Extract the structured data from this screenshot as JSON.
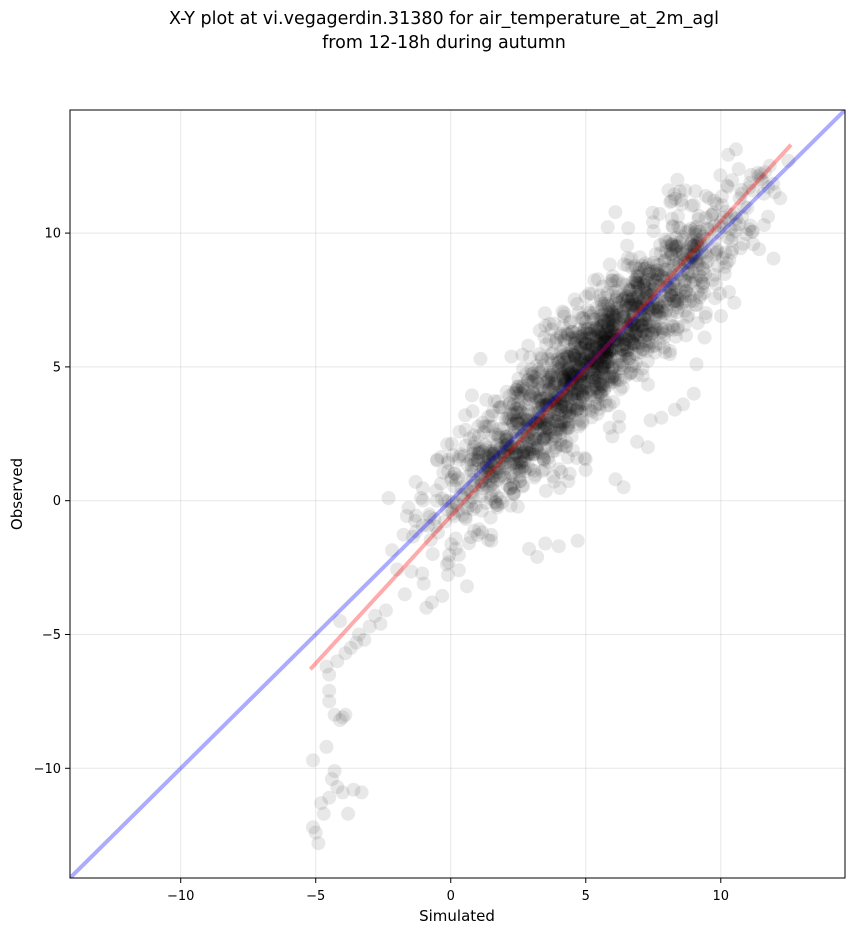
{
  "chart_data": {
    "type": "scatter",
    "title_line1": "X-Y plot at vi.vegagerdin.31380 for air_temperature_at_2m_agl",
    "title_line2": "from 12-18h during autumn",
    "xlabel": "Simulated",
    "ylabel": "Observed",
    "xlim": [
      -14.1,
      14.6
    ],
    "ylim": [
      -14.1,
      14.6
    ],
    "xticks": [
      -10,
      -5,
      0,
      5,
      10
    ],
    "yticks": [
      -10,
      -5,
      0,
      5,
      10
    ],
    "xtick_labels": [
      "−10",
      "−5",
      "0",
      "5",
      "10"
    ],
    "ytick_labels": [
      "−10",
      "−5",
      "0",
      "5",
      "10"
    ],
    "grid": true,
    "point_color": "#000000",
    "point_alpha": 0.09,
    "identity_line": {
      "x": [
        -14.1,
        14.6
      ],
      "y": [
        -14.1,
        14.6
      ],
      "color": "#0000ff"
    },
    "fit_line": {
      "x": [
        -5.2,
        12.6
      ],
      "y": [
        -6.3,
        13.3
      ],
      "color": "#ff0000"
    },
    "outlier_points": [
      [
        -5.1,
        -12.2
      ],
      [
        -4.9,
        -12.8
      ],
      [
        -4.7,
        -11.7
      ],
      [
        -4.8,
        -11.3
      ],
      [
        -4.5,
        -11.1
      ],
      [
        -4.3,
        -10.1
      ],
      [
        -4.2,
        -10.7
      ],
      [
        -4.0,
        -10.9
      ],
      [
        -3.8,
        -11.7
      ],
      [
        -3.6,
        -10.8
      ],
      [
        -3.3,
        -10.9
      ],
      [
        -5.1,
        -9.7
      ],
      [
        -4.6,
        -9.2
      ],
      [
        -4.3,
        -8.0
      ],
      [
        -4.1,
        -8.2
      ],
      [
        -3.9,
        -8.0
      ],
      [
        -4.5,
        -7.1
      ],
      [
        -4.5,
        -7.5
      ],
      [
        -4.6,
        -6.2
      ],
      [
        -4.5,
        -6.5
      ],
      [
        -4.2,
        -6.0
      ],
      [
        -4.1,
        -4.5
      ],
      [
        -3.9,
        -5.7
      ],
      [
        -3.7,
        -5.5
      ],
      [
        -3.5,
        -5.3
      ],
      [
        -3.2,
        -5.2
      ],
      [
        -3.0,
        -4.7
      ],
      [
        -2.8,
        -4.3
      ],
      [
        -2.6,
        -4.6
      ],
      [
        -2.4,
        -4.1
      ],
      [
        -5.0,
        -12.4
      ],
      [
        -4.4,
        -10.4
      ],
      [
        -4.0,
        -8.1
      ],
      [
        -3.4,
        -5.0
      ]
    ],
    "residual_points": [
      [
        4.0,
        -1.7
      ],
      [
        4.7,
        -1.5
      ],
      [
        6.4,
        0.5
      ],
      [
        6.1,
        0.8
      ],
      [
        7.3,
        2.0
      ],
      [
        6.9,
        2.2
      ],
      [
        7.8,
        3.1
      ],
      [
        8.3,
        3.4
      ],
      [
        8.6,
        3.6
      ],
      [
        7.4,
        3.0
      ],
      [
        9.0,
        4.0
      ],
      [
        9.1,
        5.1
      ],
      [
        9.4,
        6.1
      ],
      [
        10.3,
        7.8
      ],
      [
        10.5,
        7.4
      ],
      [
        12.2,
        11.3
      ],
      [
        12.5,
        12.7
      ],
      [
        11.6,
        10.3
      ],
      [
        9.8,
        9.2
      ],
      [
        1.0,
        1.5
      ],
      [
        1.1,
        5.3
      ],
      [
        -0.5,
        1.5
      ],
      [
        -1.1,
        0.1
      ],
      [
        -2.3,
        0.1
      ],
      [
        0.6,
        -3.2
      ],
      [
        2.9,
        -1.8
      ],
      [
        3.5,
        -1.6
      ],
      [
        3.2,
        -2.1
      ],
      [
        1.5,
        -1.5
      ],
      [
        -0.9,
        -4.0
      ],
      [
        -0.7,
        -3.8
      ],
      [
        -1.0,
        -3.1
      ],
      [
        -1.7,
        -3.5
      ],
      [
        0.3,
        -2.6
      ]
    ],
    "main_cloud": {
      "count": 1850,
      "x_range": [
        -2.2,
        12.0
      ],
      "slope": 0.98,
      "intercept": 0.15,
      "x_mean": 5.2,
      "x_sd": 2.7,
      "spread_sd": 1.2,
      "seed": 31380
    }
  }
}
